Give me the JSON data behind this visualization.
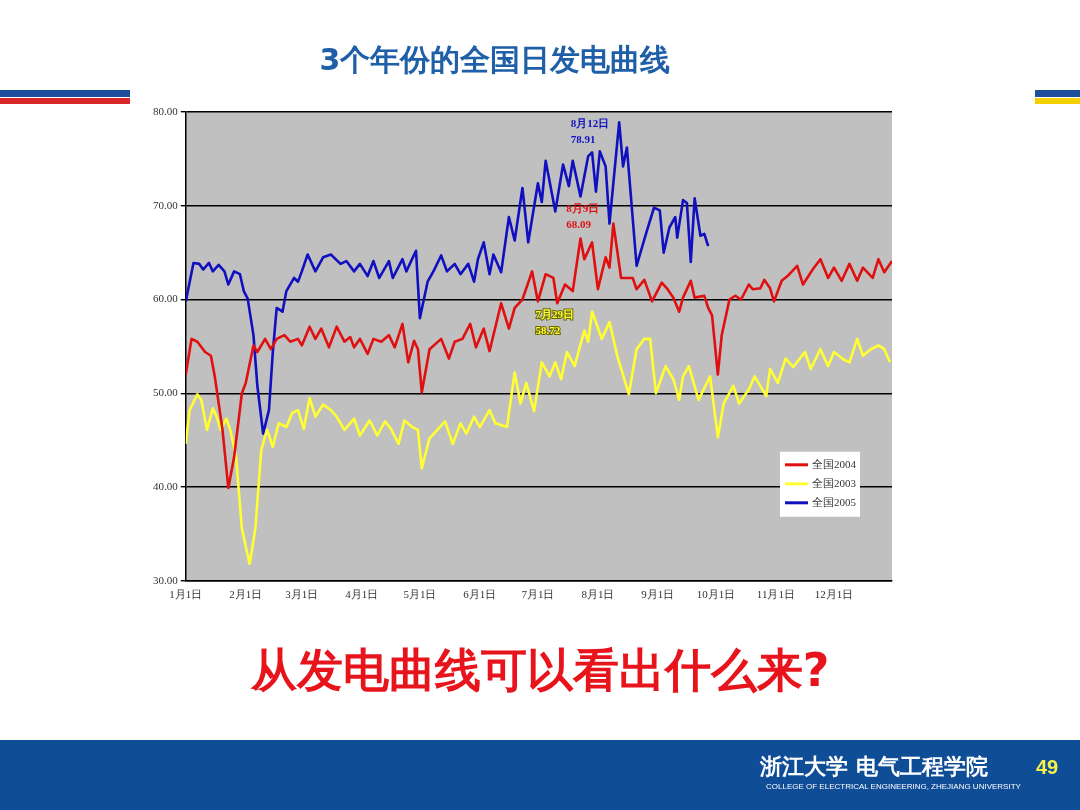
{
  "chart_data": {
    "type": "line",
    "title": "3个年份的全国日发电曲线",
    "xlim": [
      "--01-01",
      "--12-31"
    ],
    "xticks": [
      {
        "value": "--01-01",
        "label": "1月1日"
      },
      {
        "value": "--02-01",
        "label": "2月1日"
      },
      {
        "value": "--03-01",
        "label": "3月1日"
      },
      {
        "value": "--04-01",
        "label": "4月1日"
      },
      {
        "value": "--05-01",
        "label": "5月1日"
      },
      {
        "value": "--06-01",
        "label": "6月1日"
      },
      {
        "value": "--07-01",
        "label": "7月1日"
      },
      {
        "value": "--08-01",
        "label": "8月1日"
      },
      {
        "value": "--09-01",
        "label": "9月1日"
      },
      {
        "value": "--10-01",
        "label": "10月1日"
      },
      {
        "value": "--11-01",
        "label": "11月1日"
      },
      {
        "value": "--12-01",
        "label": "12月1日"
      }
    ],
    "ylim": [
      30,
      80
    ],
    "yticks": [
      {
        "value": 30,
        "label": "30.00"
      },
      {
        "value": 40,
        "label": "40.00"
      },
      {
        "value": 50,
        "label": "50.00"
      },
      {
        "value": 60,
        "label": "60.00"
      },
      {
        "value": 70,
        "label": "70.00"
      },
      {
        "value": 80,
        "label": "80.00"
      }
    ],
    "grid": "y",
    "legend": "bottom right",
    "marker": "none",
    "line_style": "solid",
    "series": [
      {
        "name": "全国2004",
        "color": "#e01010",
        "x": [
          "--01-01",
          "--01-04",
          "--01-07",
          "--01-11",
          "--01-14",
          "--01-16",
          "--01-20",
          "--01-23",
          "--01-26",
          "--01-30",
          "--02-01",
          "--02-05",
          "--02-07",
          "--02-11",
          "--02-14",
          "--02-17",
          "--02-21",
          "--02-24",
          "--02-28",
          "--03-01",
          "--03-05",
          "--03-08",
          "--03-11",
          "--03-15",
          "--03-19",
          "--03-23",
          "--03-26",
          "--03-28",
          "--03-31",
          "--04-04",
          "--04-07",
          "--04-11",
          "--04-15",
          "--04-18",
          "--04-22",
          "--04-25",
          "--04-28",
          "--04-30",
          "--05-02",
          "--05-06",
          "--05-12",
          "--05-16",
          "--05-19",
          "--05-23",
          "--05-27",
          "--05-30",
          "--06-03",
          "--06-06",
          "--06-12",
          "--06-16",
          "--06-19",
          "--06-23",
          "--06-28",
          "--07-01",
          "--07-05",
          "--07-09",
          "--07-11",
          "--07-15",
          "--07-19",
          "--07-23",
          "--07-25",
          "--07-29",
          "--08-01",
          "--08-05",
          "--08-07",
          "--08-09",
          "--08-13",
          "--08-19",
          "--08-21",
          "--08-25",
          "--08-29",
          "--09-03",
          "--09-06",
          "--09-09",
          "--09-12",
          "--09-14",
          "--09-18",
          "--09-20",
          "--09-25",
          "--09-27",
          "--09-29",
          "--10-02",
          "--10-04",
          "--10-08",
          "--10-11",
          "--10-14",
          "--10-18",
          "--10-20",
          "--10-24",
          "--10-26",
          "--10-29",
          "--10-31",
          "--11-04",
          "--11-07",
          "--11-12",
          "--11-15",
          "--11-20",
          "--11-24",
          "--11-28",
          "--12-01",
          "--12-05",
          "--12-09",
          "--12-13",
          "--12-16",
          "--12-21",
          "--12-24",
          "--12-27",
          "--12-31"
        ],
        "values": [
          52.0,
          55.8,
          55.5,
          54.4,
          54.0,
          51.8,
          46.1,
          39.9,
          43.2,
          50.0,
          51.1,
          55.1,
          54.4,
          55.8,
          54.7,
          55.8,
          56.2,
          55.5,
          55.8,
          55.1,
          57.1,
          55.8,
          56.9,
          54.9,
          57.1,
          55.5,
          56.0,
          54.9,
          55.8,
          54.2,
          55.8,
          55.5,
          56.2,
          54.9,
          57.4,
          53.3,
          55.6,
          54.7,
          50.1,
          54.7,
          55.8,
          53.7,
          55.5,
          55.8,
          57.4,
          54.9,
          56.9,
          54.5,
          59.6,
          56.9,
          59.1,
          60.0,
          63.0,
          59.8,
          62.7,
          62.3,
          59.6,
          61.6,
          60.9,
          66.5,
          64.3,
          66.1,
          61.1,
          64.5,
          63.4,
          68.09,
          62.3,
          62.3,
          61.1,
          62.1,
          59.8,
          61.8,
          61.1,
          60.2,
          58.7,
          60.2,
          62.0,
          60.2,
          60.4,
          59.1,
          58.3,
          52.0,
          56.2,
          60.0,
          60.4,
          60.0,
          61.6,
          61.1,
          61.2,
          62.1,
          61.2,
          59.8,
          62.0,
          62.5,
          63.6,
          61.6,
          63.2,
          64.3,
          62.3,
          63.4,
          62.0,
          63.8,
          62.0,
          63.4,
          62.3,
          64.3,
          62.9,
          64.1
        ]
      },
      {
        "name": "全国2003",
        "color": "#ffff33",
        "x": [
          "--01-01",
          "--01-03",
          "--01-07",
          "--01-09",
          "--01-12",
          "--01-15",
          "--01-17",
          "--01-19",
          "--01-22",
          "--01-24",
          "--01-27",
          "--01-30",
          "--02-03",
          "--02-06",
          "--02-09",
          "--02-12",
          "--02-15",
          "--02-18",
          "--02-22",
          "--02-25",
          "--02-28",
          "--03-02",
          "--03-05",
          "--03-08",
          "--03-12",
          "--03-16",
          "--03-19",
          "--03-23",
          "--03-28",
          "--03-31",
          "--04-05",
          "--04-09",
          "--04-13",
          "--04-16",
          "--04-20",
          "--04-23",
          "--04-27",
          "--04-30",
          "--05-02",
          "--05-06",
          "--05-10",
          "--05-14",
          "--05-18",
          "--05-22",
          "--05-25",
          "--05-29",
          "--06-01",
          "--06-06",
          "--06-09",
          "--06-15",
          "--06-19",
          "--06-22",
          "--06-25",
          "--06-29",
          "--07-03",
          "--07-07",
          "--07-10",
          "--07-13",
          "--07-16",
          "--07-20",
          "--07-25",
          "--07-27",
          "--07-29",
          "--08-03",
          "--08-07",
          "--08-11",
          "--08-17",
          "--08-21",
          "--08-25",
          "--08-28",
          "--08-31",
          "--09-05",
          "--09-09",
          "--09-12",
          "--09-14",
          "--09-17",
          "--09-22",
          "--09-28",
          "--10-02",
          "--10-05",
          "--10-10",
          "--10-13",
          "--10-18",
          "--10-21",
          "--10-27",
          "--10-29",
          "--11-02",
          "--11-06",
          "--11-10",
          "--11-16",
          "--11-19",
          "--11-24",
          "--11-28",
          "--12-01",
          "--12-06",
          "--12-09",
          "--12-13",
          "--12-16",
          "--12-20",
          "--12-24",
          "--12-27",
          "--12-30"
        ],
        "values": [
          44.6,
          48.2,
          49.9,
          49.3,
          46.1,
          48.4,
          47.5,
          46.1,
          47.3,
          46.1,
          43.2,
          35.6,
          31.8,
          35.6,
          43.9,
          46.1,
          44.3,
          46.8,
          46.4,
          47.9,
          48.2,
          46.2,
          49.5,
          47.5,
          48.8,
          48.2,
          47.5,
          46.1,
          47.3,
          45.5,
          47.1,
          45.5,
          47.0,
          46.2,
          44.6,
          47.1,
          46.4,
          46.1,
          42.0,
          45.2,
          46.1,
          47.0,
          44.6,
          46.8,
          45.7,
          47.5,
          46.4,
          48.2,
          46.8,
          46.4,
          52.2,
          48.9,
          51.1,
          48.1,
          53.3,
          51.8,
          53.3,
          51.5,
          54.4,
          52.9,
          56.7,
          55.5,
          58.72,
          55.8,
          57.6,
          54.0,
          49.9,
          54.7,
          55.8,
          55.8,
          50.0,
          52.9,
          51.5,
          49.3,
          51.8,
          52.9,
          49.3,
          51.8,
          45.3,
          48.9,
          50.8,
          48.9,
          50.4,
          51.8,
          49.7,
          52.6,
          51.1,
          53.7,
          52.8,
          54.4,
          52.6,
          54.7,
          52.9,
          54.4,
          53.6,
          53.3,
          55.8,
          54.0,
          54.7,
          55.1,
          54.7,
          53.3
        ]
      },
      {
        "name": "全国2005",
        "color": "#1010c0",
        "x": [
          "--01-01",
          "--01-05",
          "--01-08",
          "--01-10",
          "--01-13",
          "--01-15",
          "--01-18",
          "--01-21",
          "--01-23",
          "--01-26",
          "--01-29",
          "--01-31",
          "--02-02",
          "--02-05",
          "--02-07",
          "--02-10",
          "--02-13",
          "--02-15",
          "--02-17",
          "--02-20",
          "--02-22",
          "--02-26",
          "--02-28",
          "--03-01",
          "--03-04",
          "--03-08",
          "--03-12",
          "--03-16",
          "--03-21",
          "--03-24",
          "--03-28",
          "--03-31",
          "--04-04",
          "--04-07",
          "--04-10",
          "--04-15",
          "--04-17",
          "--04-22",
          "--04-24",
          "--04-29",
          "--05-01",
          "--05-05",
          "--05-08",
          "--05-12",
          "--05-15",
          "--05-19",
          "--05-22",
          "--05-26",
          "--05-29",
          "--05-31",
          "--06-03",
          "--06-06",
          "--06-08",
          "--06-12",
          "--06-16",
          "--06-19",
          "--06-23",
          "--06-26",
          "--07-01",
          "--07-03",
          "--07-05",
          "--07-10",
          "--07-14",
          "--07-17",
          "--07-19",
          "--07-23",
          "--07-27",
          "--07-29",
          "--07-31",
          "--08-02",
          "--08-05",
          "--08-07",
          "--08-12",
          "--08-14",
          "--08-16",
          "--08-21",
          "--08-26",
          "--08-30",
          "--09-02",
          "--09-04",
          "--09-07",
          "--09-10",
          "--09-11",
          "--09-14",
          "--09-16",
          "--09-18",
          "--09-20",
          "--09-23",
          "--09-25",
          "--09-27"
        ],
        "values": [
          59.8,
          63.9,
          63.8,
          63.2,
          63.9,
          63.0,
          63.7,
          63.0,
          61.6,
          63.0,
          62.7,
          60.9,
          60.1,
          56.2,
          50.8,
          45.7,
          48.2,
          54.4,
          59.1,
          58.7,
          60.9,
          62.3,
          61.9,
          63.0,
          64.8,
          63.0,
          64.5,
          64.8,
          63.8,
          64.1,
          63.0,
          63.8,
          62.5,
          64.1,
          62.3,
          64.1,
          62.3,
          64.3,
          63.0,
          65.2,
          58.0,
          61.9,
          63.0,
          64.7,
          63.0,
          63.8,
          62.7,
          63.8,
          61.9,
          64.3,
          66.1,
          62.7,
          64.8,
          62.9,
          68.8,
          66.3,
          71.9,
          66.1,
          72.4,
          70.4,
          74.8,
          69.4,
          74.4,
          72.1,
          74.8,
          71.0,
          75.3,
          75.7,
          71.5,
          75.8,
          74.2,
          68.1,
          78.91,
          74.2,
          76.2,
          63.6,
          67.1,
          69.8,
          69.5,
          65.0,
          67.7,
          68.8,
          66.6,
          70.6,
          70.3,
          64.0,
          70.8,
          66.8,
          67.0,
          65.7
        ]
      }
    ],
    "annotations": [
      {
        "text": "8月12日\n78.91",
        "x": "--08-12",
        "y": 78.91
      },
      {
        "text": "8月9日\n68.09",
        "x": "--08-09",
        "y": 68.09
      },
      {
        "text": "7月29日\n58.72",
        "x": "--07-29",
        "y": 58.72
      },
      "从发电曲线可以看出什么来?",
      "浙江大学 电气工程学院",
      "COLLEGE OF ELECTRICAL ENGINEERING, ZHEJIANG UNIVERSITY",
      "49"
    ]
  }
}
